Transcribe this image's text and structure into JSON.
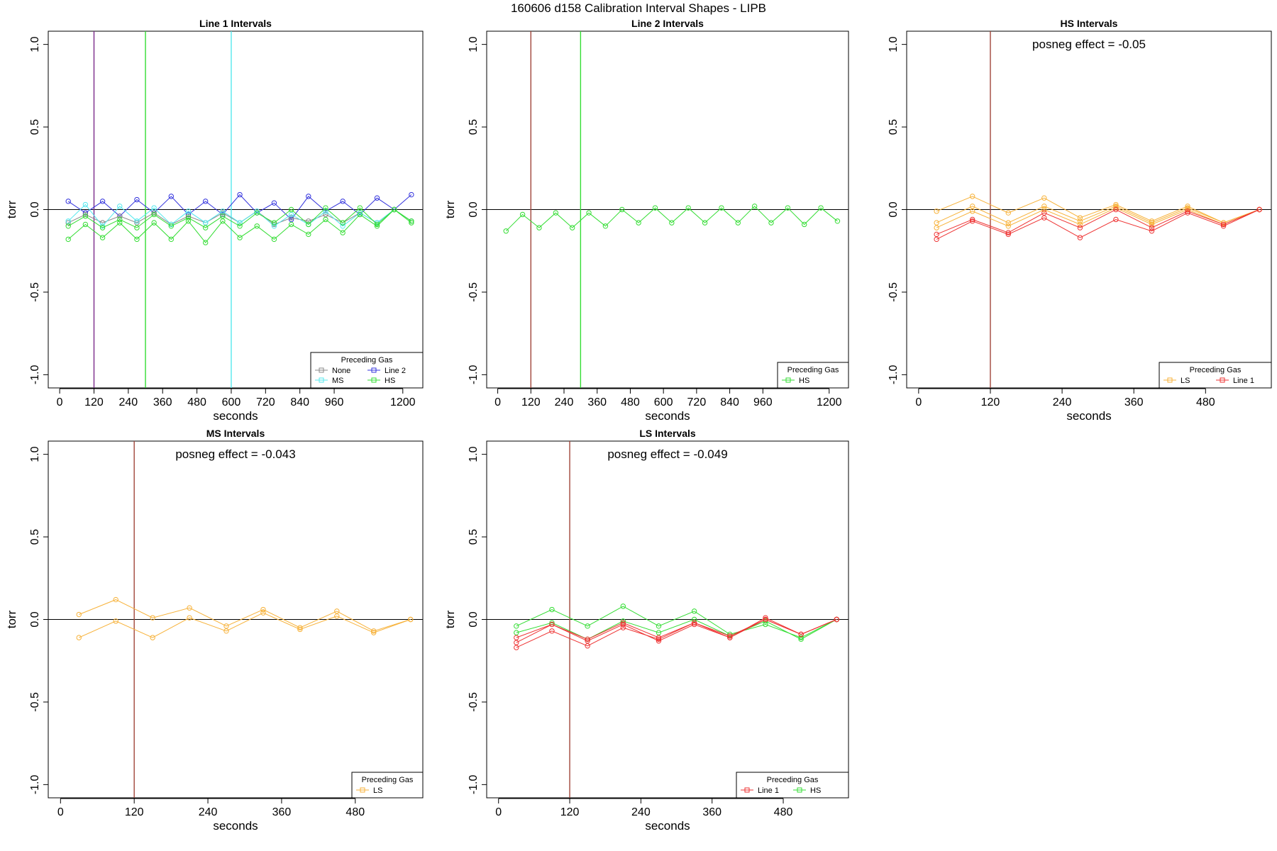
{
  "figure": {
    "title": "160606   d158   Calibration Interval Shapes - LIPB"
  },
  "colors": {
    "None": "#888888",
    "Line 2": "#3333dd",
    "MS": "#55e8ee",
    "HS": "#33dd33",
    "LS": "#f7b23a",
    "Line 1": "#ee3333",
    "vline_brown": "#a0453a",
    "vline_purple": "#7a2a8a"
  },
  "chart_data": [
    {
      "type": "line",
      "title": "Line 1 Intervals",
      "xlabel": "seconds",
      "ylabel": "torr",
      "xlim": [
        -40,
        1270
      ],
      "ylim": [
        -1.08,
        1.08
      ],
      "xticks": [
        0,
        120,
        240,
        360,
        480,
        600,
        720,
        840,
        960,
        1200
      ],
      "yticks": [
        -1.0,
        -0.5,
        0.0,
        0.5,
        1.0
      ],
      "ytick_labels": [
        "-1.0",
        "-0.5",
        "0.0",
        "0.5",
        "1.0"
      ],
      "hline": 0,
      "vlines": [
        {
          "x": 120,
          "color": "vline_purple"
        },
        {
          "x": 300,
          "color": "HS"
        },
        {
          "x": 600,
          "color": "MS"
        }
      ],
      "legend": {
        "title": "Preceding Gas",
        "entries": [
          "None",
          "Line 2",
          "MS",
          "HS"
        ],
        "columns": 2,
        "position": "bottom-right"
      },
      "series": [
        {
          "name": "Line 2",
          "color": "Line 2",
          "x": [
            30,
            90,
            150,
            210,
            270,
            330,
            390,
            450,
            510,
            570,
            630,
            690,
            750,
            810,
            870,
            930,
            990,
            1050,
            1110,
            1170,
            1230
          ],
          "y": [
            0.05,
            -0.02,
            0.05,
            -0.04,
            0.06,
            -0.02,
            0.08,
            -0.03,
            0.05,
            -0.03,
            0.09,
            -0.02,
            0.04,
            -0.06,
            0.08,
            -0.01,
            0.05,
            -0.03,
            0.07,
            0.0,
            0.09
          ]
        },
        {
          "name": "None",
          "color": "None",
          "x": [
            30,
            90,
            150,
            210,
            270,
            330,
            390,
            450,
            510,
            570,
            630,
            690,
            750,
            810,
            870,
            930,
            990,
            1050,
            1110,
            1170,
            1230
          ],
          "y": [
            -0.08,
            -0.03,
            -0.08,
            -0.04,
            -0.08,
            -0.02,
            -0.09,
            -0.04,
            -0.08,
            -0.02,
            -0.08,
            -0.01,
            -0.09,
            -0.05,
            -0.07,
            -0.03,
            -0.08,
            -0.02,
            -0.08,
            0.0,
            -0.07
          ]
        },
        {
          "name": "MS",
          "color": "MS",
          "x": [
            30,
            90,
            150,
            210,
            270,
            330,
            390,
            450,
            510,
            570,
            630,
            690,
            750,
            810,
            870,
            930,
            990,
            1050,
            1110,
            1170,
            1230
          ],
          "y": [
            -0.07,
            0.03,
            -0.1,
            0.02,
            -0.07,
            0.01,
            -0.09,
            -0.01,
            -0.08,
            -0.01,
            -0.08,
            -0.01,
            -0.1,
            -0.03,
            -0.09,
            -0.01,
            -0.1,
            -0.02,
            -0.08,
            0.0,
            -0.07
          ]
        },
        {
          "name": "HS",
          "color": "HS",
          "x": [
            30,
            90,
            150,
            210,
            270,
            330,
            390,
            450,
            510,
            570,
            630,
            690,
            750,
            810,
            870,
            930,
            990,
            1050,
            1110,
            1170,
            1230
          ],
          "y": [
            -0.1,
            -0.04,
            -0.11,
            -0.06,
            -0.11,
            -0.03,
            -0.1,
            -0.05,
            -0.11,
            -0.04,
            -0.1,
            -0.02,
            -0.08,
            0.0,
            -0.09,
            0.01,
            -0.08,
            0.01,
            -0.09,
            0.0,
            -0.07
          ]
        },
        {
          "name": "HS",
          "color": "HS",
          "x": [
            30,
            90,
            150,
            210,
            270,
            330,
            390,
            450,
            510,
            570,
            630,
            690,
            750,
            810,
            870,
            930,
            990,
            1050,
            1110,
            1170,
            1230
          ],
          "y": [
            -0.18,
            -0.09,
            -0.17,
            -0.08,
            -0.18,
            -0.08,
            -0.18,
            -0.07,
            -0.2,
            -0.07,
            -0.17,
            -0.1,
            -0.18,
            -0.09,
            -0.15,
            -0.06,
            -0.14,
            -0.03,
            -0.1,
            0.0,
            -0.08
          ]
        }
      ]
    },
    {
      "type": "line",
      "title": "Line 2 Intervals",
      "xlabel": "seconds",
      "ylabel": "torr",
      "xlim": [
        -40,
        1270
      ],
      "ylim": [
        -1.08,
        1.08
      ],
      "xticks": [
        0,
        120,
        240,
        360,
        480,
        600,
        720,
        840,
        960,
        1200
      ],
      "yticks": [
        -1.0,
        -0.5,
        0.0,
        0.5,
        1.0
      ],
      "ytick_labels": [
        "-1.0",
        "-0.5",
        "0.0",
        "0.5",
        "1.0"
      ],
      "hline": 0,
      "vlines": [
        {
          "x": 120,
          "color": "vline_brown"
        },
        {
          "x": 300,
          "color": "HS"
        }
      ],
      "legend": {
        "title": "Preceding Gas",
        "entries": [
          "HS"
        ],
        "columns": 1,
        "position": "bottom-right"
      },
      "series": [
        {
          "name": "HS",
          "color": "HS",
          "x": [
            30,
            90,
            150,
            210,
            270,
            330,
            390,
            450,
            510,
            570,
            630,
            690,
            750,
            810,
            870,
            930,
            990,
            1050,
            1110,
            1170,
            1230
          ],
          "y": [
            -0.13,
            -0.03,
            -0.11,
            -0.02,
            -0.11,
            -0.02,
            -0.1,
            0.0,
            -0.08,
            0.01,
            -0.08,
            0.01,
            -0.08,
            0.01,
            -0.08,
            0.02,
            -0.08,
            0.01,
            -0.09,
            0.01,
            -0.07
          ]
        }
      ]
    },
    {
      "type": "line",
      "title": "HS Intervals",
      "annotation": "posneg effect = -0.05",
      "xlabel": "seconds",
      "ylabel": "",
      "xlim": [
        -20,
        590
      ],
      "ylim": [
        -1.08,
        1.08
      ],
      "xticks": [
        0,
        120,
        240,
        360,
        480
      ],
      "yticks": [
        -1.0,
        -0.5,
        0.0,
        0.5,
        1.0
      ],
      "ytick_labels": [
        "-1.0",
        "-0.5",
        "0.0",
        "0.5",
        "1.0"
      ],
      "hline": 0,
      "vlines": [
        {
          "x": 120,
          "color": "vline_brown"
        }
      ],
      "legend": {
        "title": "Preceding Gas",
        "entries": [
          "LS",
          "Line 1"
        ],
        "columns": 2,
        "position": "bottom-right"
      },
      "series": [
        {
          "name": "LS",
          "color": "LS",
          "x": [
            30,
            90,
            150,
            210,
            270,
            330,
            390,
            450,
            510,
            570
          ],
          "y": [
            -0.01,
            0.08,
            -0.02,
            0.07,
            -0.05,
            0.03,
            -0.07,
            0.02,
            -0.08,
            0.0
          ]
        },
        {
          "name": "LS",
          "color": "LS",
          "x": [
            30,
            90,
            150,
            210,
            270,
            330,
            390,
            450,
            510,
            570
          ],
          "y": [
            -0.08,
            0.02,
            -0.08,
            0.02,
            -0.07,
            0.02,
            -0.08,
            0.01,
            -0.08,
            0.0
          ]
        },
        {
          "name": "LS",
          "color": "LS",
          "x": [
            30,
            90,
            150,
            210,
            270,
            330,
            390,
            450,
            510,
            570
          ],
          "y": [
            -0.11,
            -0.01,
            -0.1,
            0.0,
            -0.09,
            0.01,
            -0.09,
            0.0,
            -0.09,
            0.0
          ]
        },
        {
          "name": "Line 1",
          "color": "Line 1",
          "x": [
            30,
            90,
            150,
            210,
            270,
            330,
            390,
            450,
            510,
            570
          ],
          "y": [
            -0.15,
            -0.06,
            -0.14,
            -0.02,
            -0.11,
            0.0,
            -0.11,
            -0.01,
            -0.09,
            0.0
          ]
        },
        {
          "name": "Line 1",
          "color": "Line 1",
          "x": [
            30,
            90,
            150,
            210,
            270,
            330,
            390,
            450,
            510,
            570
          ],
          "y": [
            -0.18,
            -0.07,
            -0.15,
            -0.05,
            -0.17,
            -0.06,
            -0.13,
            -0.02,
            -0.1,
            0.0
          ]
        }
      ]
    },
    {
      "type": "line",
      "title": "MS Intervals",
      "annotation": "posneg effect = -0.043",
      "xlabel": "seconds",
      "ylabel": "torr",
      "xlim": [
        -20,
        590
      ],
      "ylim": [
        -1.08,
        1.08
      ],
      "xticks": [
        0,
        120,
        240,
        360,
        480
      ],
      "yticks": [
        -1.0,
        -0.5,
        0.0,
        0.5,
        1.0
      ],
      "ytick_labels": [
        "-1.0",
        "-0.5",
        "0.0",
        "0.5",
        "1.0"
      ],
      "hline": 0,
      "vlines": [
        {
          "x": 120,
          "color": "vline_brown"
        }
      ],
      "legend": {
        "title": "Preceding Gas",
        "entries": [
          "LS"
        ],
        "columns": 1,
        "position": "bottom-right"
      },
      "series": [
        {
          "name": "LS",
          "color": "LS",
          "x": [
            30,
            90,
            150,
            210,
            270,
            330,
            390,
            450,
            510,
            570
          ],
          "y": [
            0.03,
            0.12,
            0.01,
            0.07,
            -0.04,
            0.06,
            -0.05,
            0.05,
            -0.07,
            0.0
          ]
        },
        {
          "name": "LS",
          "color": "LS",
          "x": [
            30,
            90,
            150,
            210,
            270,
            330,
            390,
            450,
            510,
            570
          ],
          "y": [
            -0.11,
            -0.01,
            -0.11,
            0.01,
            -0.07,
            0.04,
            -0.06,
            0.02,
            -0.08,
            0.0
          ]
        }
      ]
    },
    {
      "type": "line",
      "title": "LS Intervals",
      "annotation": "posneg effect = -0.049",
      "xlabel": "seconds",
      "ylabel": "torr",
      "xlim": [
        -20,
        590
      ],
      "ylim": [
        -1.08,
        1.08
      ],
      "xticks": [
        0,
        120,
        240,
        360,
        480
      ],
      "yticks": [
        -1.0,
        -0.5,
        0.0,
        0.5,
        1.0
      ],
      "ytick_labels": [
        "-1.0",
        "-0.5",
        "0.0",
        "0.5",
        "1.0"
      ],
      "hline": 0,
      "vlines": [
        {
          "x": 120,
          "color": "vline_brown"
        }
      ],
      "legend": {
        "title": "Preceding Gas",
        "entries": [
          "Line 1",
          "HS"
        ],
        "columns": 2,
        "position": "bottom-right"
      },
      "series": [
        {
          "name": "HS",
          "color": "HS",
          "x": [
            30,
            90,
            150,
            210,
            270,
            330,
            390,
            450,
            510,
            570
          ],
          "y": [
            -0.04,
            0.06,
            -0.04,
            0.08,
            -0.04,
            0.05,
            -0.09,
            -0.03,
            -0.11,
            0.0
          ]
        },
        {
          "name": "HS",
          "color": "HS",
          "x": [
            30,
            90,
            150,
            210,
            270,
            330,
            390,
            450,
            510,
            570
          ],
          "y": [
            -0.08,
            -0.02,
            -0.12,
            -0.01,
            -0.08,
            0.0,
            -0.1,
            -0.01,
            -0.12,
            0.0
          ]
        },
        {
          "name": "Line 1",
          "color": "Line 1",
          "x": [
            30,
            90,
            150,
            210,
            270,
            330,
            390,
            450,
            510,
            570
          ],
          "y": [
            -0.11,
            -0.03,
            -0.12,
            -0.02,
            -0.11,
            -0.02,
            -0.1,
            0.0,
            -0.09,
            0.0
          ]
        },
        {
          "name": "Line 1",
          "color": "Line 1",
          "x": [
            30,
            90,
            150,
            210,
            270,
            330,
            390,
            450,
            510,
            570
          ],
          "y": [
            -0.14,
            -0.03,
            -0.13,
            -0.03,
            -0.13,
            -0.03,
            -0.11,
            0.01,
            -0.09,
            0.0
          ]
        },
        {
          "name": "Line 1",
          "color": "Line 1",
          "x": [
            30,
            90,
            150,
            210,
            270,
            330,
            390,
            450,
            510,
            570
          ],
          "y": [
            -0.17,
            -0.07,
            -0.16,
            -0.05,
            -0.12,
            -0.02,
            -0.11,
            0.0,
            -0.09,
            0.0
          ]
        }
      ]
    }
  ]
}
